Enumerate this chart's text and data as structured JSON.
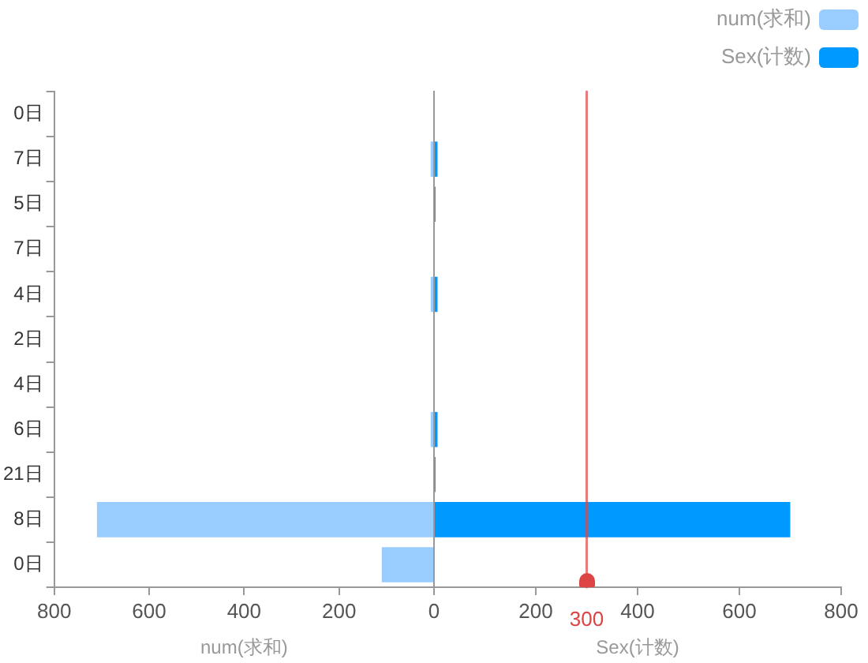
{
  "chart_data": [
    {
      "type": "bar",
      "orientation": "horizontal",
      "legend": "top right",
      "grid": false,
      "categories": [
        "0日",
        "7日",
        "5日",
        "7日",
        "4日",
        "2日",
        "4日",
        "6日",
        "21日",
        "8日",
        "0日"
      ],
      "series": [
        {
          "name": "num(求和)",
          "color": "#99ccff",
          "values": [
            0,
            7,
            0,
            0,
            7,
            0,
            0,
            7,
            0,
            710,
            110
          ]
        }
      ],
      "xlabel": "num(求和)",
      "xlim": [
        800,
        0
      ],
      "xticks": [
        800,
        600,
        400,
        200,
        {
          "value": 0,
          "label": null
        }
      ]
    },
    {
      "type": "bar",
      "orientation": "horizontal",
      "legend": "top right",
      "grid": false,
      "categories": [
        null,
        null,
        null,
        null,
        null,
        null,
        null,
        null,
        null,
        null,
        null
      ],
      "series": [
        {
          "name": "Sex(计数)",
          "color": "#0099ff",
          "values": [
            0,
            7,
            3,
            0,
            7,
            0,
            0,
            7,
            3,
            700,
            0
          ]
        }
      ],
      "xlabel": "Sex(计数)",
      "xlim": [
        0,
        800
      ],
      "xticks": [
        0,
        200,
        400,
        600,
        800
      ],
      "ref_lines": [
        {
          "axis": "x",
          "value": 300,
          "label": "300",
          "color": "#dd4444"
        }
      ]
    }
  ]
}
